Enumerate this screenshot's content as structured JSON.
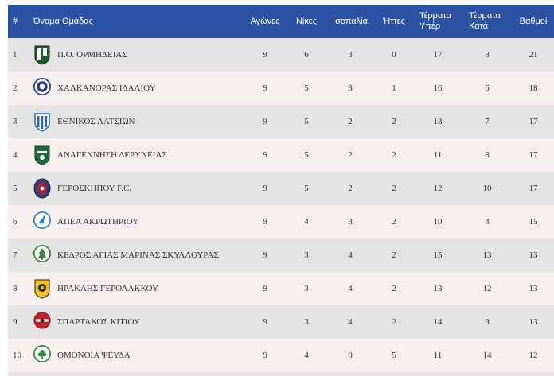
{
  "header": {
    "pos": "#",
    "team": "Όνομα Ομάδας",
    "played": "Αγώνες",
    "wins": "Νίκες",
    "draws": "Ισοπαλία",
    "losses": "Ήττες",
    "gf_line1": "Τέρματα",
    "gf_line2": "Υπέρ",
    "ga_line1": "Τέρματα",
    "ga_line2": "Κατά",
    "points": "Βαθμοί"
  },
  "rows": [
    {
      "pos": "1",
      "team": "Π.Ο. ΟΡΜΗΔΕΙΑΣ",
      "played": "9",
      "wins": "6",
      "draws": "3",
      "losses": "0",
      "gf": "17",
      "ga": "8",
      "points": "21",
      "logo": "ormideia-crest-icon"
    },
    {
      "pos": "2",
      "team": "ΧΑΛΚΑΝΟΡΑΣ ΙΔΑΛΙΟΥ",
      "played": "9",
      "wins": "5",
      "draws": "3",
      "losses": "1",
      "gf": "16",
      "ga": "6",
      "points": "18",
      "logo": "chalkanoras-crest-icon"
    },
    {
      "pos": "3",
      "team": "ΕΘΝΙΚΟΣ ΛΑΤΣΙΩΝ",
      "played": "9",
      "wins": "5",
      "draws": "2",
      "losses": "2",
      "gf": "13",
      "ga": "7",
      "points": "17",
      "logo": "ethnikos-crest-icon"
    },
    {
      "pos": "4",
      "team": "ΑΝΑΓΕΝΝΗΣΗ ΔΕΡΥΝΕΙΑΣ",
      "played": "9",
      "wins": "5",
      "draws": "2",
      "losses": "2",
      "gf": "11",
      "ga": "8",
      "points": "17",
      "logo": "anagennisi-crest-icon"
    },
    {
      "pos": "5",
      "team": "ΓΕΡΟΣΚΗΠΟΥ F.C.",
      "played": "9",
      "wins": "5",
      "draws": "2",
      "losses": "2",
      "gf": "12",
      "ga": "10",
      "points": "17",
      "logo": "geroskipou-crest-icon"
    },
    {
      "pos": "6",
      "team": "ΑΠΕΑ ΑΚΡΩΤΗΡΙΟΥ",
      "played": "9",
      "wins": "4",
      "draws": "3",
      "losses": "2",
      "gf": "10",
      "ga": "4",
      "points": "15",
      "logo": "apea-crest-icon"
    },
    {
      "pos": "7",
      "team": "ΚΕΔΡΟΣ ΑΓΙΑΣ ΜΑΡΙΝΑΣ ΣΚΥΛΛΟΥΡΑΣ",
      "played": "9",
      "wins": "3",
      "draws": "4",
      "losses": "2",
      "gf": "15",
      "ga": "13",
      "points": "13",
      "logo": "kedros-crest-icon"
    },
    {
      "pos": "8",
      "team": "ΗΡΑΚΛΗΣ ΓΕΡΟΛΑΚΚΟΥ",
      "played": "9",
      "wins": "3",
      "draws": "4",
      "losses": "2",
      "gf": "13",
      "ga": "12",
      "points": "13",
      "logo": "iraklis-crest-icon"
    },
    {
      "pos": "9",
      "team": "ΣΠΑΡΤΑΚΟΣ ΚΙΤΙΟΥ",
      "played": "9",
      "wins": "3",
      "draws": "4",
      "losses": "2",
      "gf": "14",
      "ga": "9",
      "points": "13",
      "logo": "spartakos-crest-icon"
    },
    {
      "pos": "10",
      "team": "ΟΜΟΝΟΙΑ ΨΕΥΔΑ",
      "played": "9",
      "wins": "4",
      "draws": "0",
      "losses": "5",
      "gf": "11",
      "ga": "14",
      "points": "12",
      "logo": "omonoia-crest-icon"
    }
  ]
}
